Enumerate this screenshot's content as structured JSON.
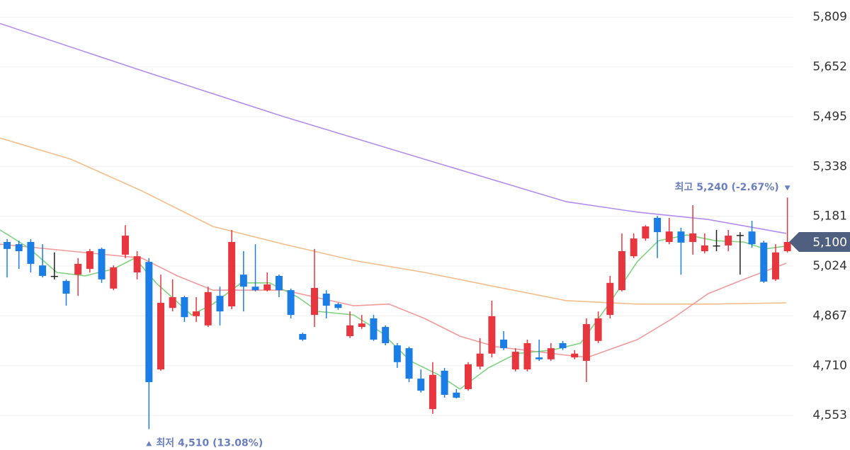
{
  "chart_data": {
    "type": "candlestick",
    "xlim": [
      -0.6,
      66.5
    ],
    "ylim": [
      4444,
      5863
    ],
    "yticks": [
      {
        "value": 5809,
        "label": "5,809"
      },
      {
        "value": 5652,
        "label": "5,652"
      },
      {
        "value": 5495,
        "label": "5,495"
      },
      {
        "value": 5338,
        "label": "5,338"
      },
      {
        "value": 5181,
        "label": "5,181"
      },
      {
        "value": 5024,
        "label": "5,024"
      },
      {
        "value": 4867,
        "label": "4,867"
      },
      {
        "value": 4710,
        "label": "4,710"
      },
      {
        "value": 4553,
        "label": "4,553"
      }
    ],
    "grid": true,
    "up_color": "#e8363f",
    "down_color": "#1a7ee6",
    "flat_color": "#222222",
    "open": [
      5100,
      5093,
      5100,
      5026,
      4993,
      4977,
      4997,
      5015,
      5078,
      4953,
      5060,
      5004,
      5037,
      4698,
      4892,
      4926,
      4866,
      4837,
      4930,
      4897,
      4997,
      4959,
      4948,
      4993,
      4948,
      4810,
      4870,
      4937,
      4904,
      4803,
      4832,
      4859,
      4832,
      4774,
      4765,
      4669,
      4573,
      4694,
      4625,
      4636,
      4707,
      4748,
      4792,
      4698,
      4698,
      4736,
      4730,
      4781,
      4736,
      4725,
      4788,
      4870,
      4948,
      5055,
      5111,
      5176,
      5100,
      5133,
      5100,
      5071,
      5089,
      5089,
      5122,
      5133,
      5098,
      4982,
      5071
    ],
    "close": [
      5078,
      5071,
      5031,
      4993,
      4993,
      4937,
      5031,
      5071,
      4982,
      5020,
      5120,
      5055,
      4658,
      4908,
      4926,
      4863,
      4881,
      4942,
      4881,
      5100,
      4959,
      4948,
      4966,
      4948,
      4870,
      4792,
      4955,
      4899,
      4892,
      4837,
      4843,
      4792,
      4781,
      4721,
      4669,
      4631,
      4681,
      4618,
      4609,
      4714,
      4748,
      4866,
      4765,
      4754,
      4781,
      4730,
      4765,
      4765,
      4748,
      4841,
      4859,
      4971,
      5071,
      5111,
      5149,
      5131,
      5133,
      5098,
      5127,
      5089,
      5089,
      5120,
      5122,
      5093,
      4975,
      5067,
      5100
    ],
    "high": [
      5109,
      5104,
      5109,
      5093,
      5067,
      4982,
      5049,
      5078,
      5082,
      5026,
      5153,
      5071,
      5049,
      4997,
      4982,
      4930,
      4926,
      4959,
      4959,
      5138,
      5071,
      5093,
      5004,
      4997,
      4953,
      4814,
      5078,
      4948,
      4908,
      4881,
      4870,
      4870,
      4837,
      4781,
      4770,
      4698,
      4721,
      4703,
      4636,
      4721,
      4797,
      4915,
      4819,
      4765,
      4792,
      4792,
      4781,
      4788,
      4759,
      4859,
      4881,
      4993,
      5127,
      5127,
      5153,
      5182,
      5176,
      5145,
      5216,
      5127,
      5138,
      5138,
      5131,
      5167,
      5104,
      5093,
      5240
    ],
    "low": [
      4988,
      5015,
      5004,
      4988,
      4982,
      4899,
      4930,
      5004,
      4971,
      4948,
      5049,
      4982,
      4510,
      4694,
      4881,
      4848,
      4848,
      4832,
      4837,
      4888,
      4881,
      4944,
      4944,
      4926,
      4859,
      4788,
      4832,
      4859,
      4886,
      4797,
      4826,
      4788,
      4774,
      4703,
      4658,
      4625,
      4558,
      4609,
      4607,
      4631,
      4698,
      4736,
      4759,
      4692,
      4692,
      4725,
      4725,
      4759,
      4730,
      4658,
      4781,
      4859,
      4944,
      5049,
      5104,
      5049,
      5093,
      4997,
      5060,
      5064,
      5071,
      5071,
      4997,
      5082,
      4971,
      4977,
      5067
    ],
    "lines": [
      {
        "color": "#b38cf2",
        "x": [
          -0.6,
          11.4,
          23.4,
          35.3,
          47.3,
          53.3,
          59.3,
          65.9
        ],
        "values": [
          5789,
          5640,
          5495,
          5361,
          5227,
          5194,
          5171,
          5127
        ]
      },
      {
        "color": "#f5bd8a",
        "x": [
          -0.6,
          5.4,
          11.4,
          17.4,
          23.4,
          29.3,
          35.3,
          41.3,
          47.3,
          53.3,
          59.3,
          65.9
        ],
        "values": [
          5428,
          5361,
          5261,
          5149,
          5093,
          5042,
          5004,
          4959,
          4915,
          4904,
          4904,
          4908
        ]
      },
      {
        "color": "#f29a9a",
        "x": [
          -0.6,
          5.4,
          11.4,
          14.4,
          17.4,
          23.4,
          29.3,
          32.3,
          35.3,
          38.3,
          41.3,
          47.3,
          49.1,
          53.3,
          56.3,
          59.3,
          62.3,
          65.9
        ],
        "values": [
          5093,
          5071,
          5049,
          4993,
          4948,
          4948,
          4899,
          4904,
          4859,
          4803,
          4770,
          4743,
          4736,
          4792,
          4859,
          4937,
          4982,
          5033
        ]
      },
      {
        "color": "#7fd37f",
        "x": [
          -0.6,
          1.8,
          4.2,
          6.6,
          9.0,
          10.8,
          12.6,
          15.6,
          17.4,
          19.8,
          22.2,
          24.6,
          26.3,
          29.3,
          31.7,
          34.1,
          36.5,
          38.3,
          40.7,
          43.1,
          46.1,
          48.5,
          50.9,
          53.3,
          55.1,
          57.5,
          59.9,
          62.3,
          64.1,
          65.9
        ],
        "values": [
          5138,
          5082,
          5004,
          4993,
          5015,
          5049,
          4971,
          4870,
          4904,
          4971,
          4971,
          4926,
          4881,
          4870,
          4814,
          4725,
          4681,
          4636,
          4703,
          4748,
          4759,
          4781,
          4904,
          5038,
          5104,
          5122,
          5104,
          5100,
          5078,
          5087
        ]
      }
    ],
    "annotations": {
      "high": "최고 5,240 (-2.67%)",
      "low": "최저 4,510 (13.08%)"
    },
    "current_price": {
      "value": 5100,
      "label": "5,100"
    }
  }
}
